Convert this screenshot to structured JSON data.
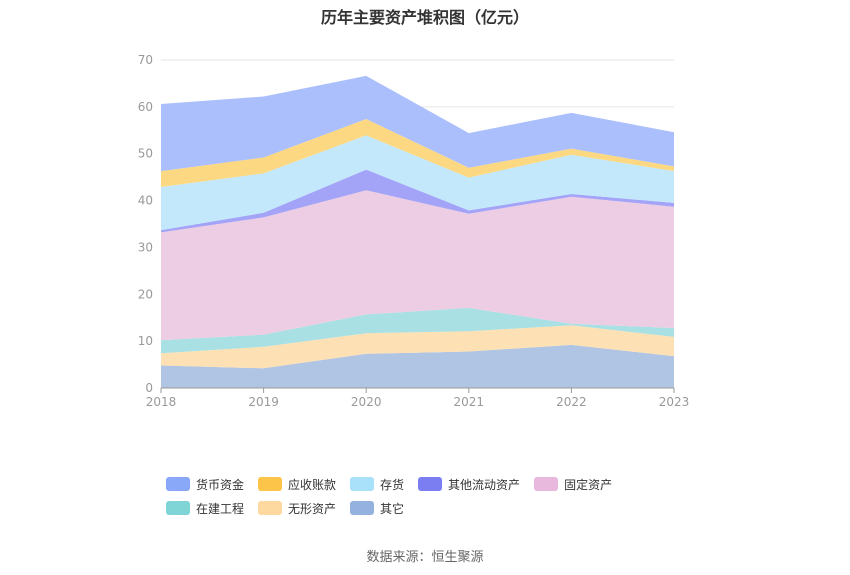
{
  "chart_data": {
    "type": "area",
    "stacked": true,
    "title": "历年主要资产堆积图（亿元）",
    "categories": [
      "2018",
      "2019",
      "2020",
      "2021",
      "2022",
      "2023"
    ],
    "ylim": [
      0,
      70
    ],
    "yticks": [
      0,
      10,
      20,
      30,
      40,
      50,
      60,
      70
    ],
    "grid": true,
    "legend_position": "bottom",
    "series": [
      {
        "name": "其它",
        "color": "#b0c4e4",
        "values": [
          4.8,
          4.2,
          7.3,
          7.8,
          9.2,
          6.8
        ]
      },
      {
        "name": "无形资产",
        "color": "#fde0b3",
        "values": [
          2.6,
          4.6,
          4.4,
          4.3,
          4.2,
          4.1
        ]
      },
      {
        "name": "在建工程",
        "color": "#a8e0e3",
        "values": [
          2.8,
          2.6,
          4.0,
          5.0,
          0.3,
          1.9
        ]
      },
      {
        "name": "固定资产",
        "color": "#edcde4",
        "values": [
          23.0,
          25.0,
          26.5,
          20.1,
          27.1,
          25.9
        ]
      },
      {
        "name": "其他流动资产",
        "color": "#a3a3f7",
        "values": [
          0.5,
          1.0,
          4.4,
          0.7,
          0.6,
          0.8
        ]
      },
      {
        "name": "存货",
        "color": "#c4e8fb",
        "values": [
          9.2,
          8.4,
          7.3,
          7.0,
          8.4,
          6.8
        ]
      },
      {
        "name": "应收账款",
        "color": "#fdd883",
        "values": [
          3.4,
          3.4,
          3.5,
          2.1,
          1.3,
          1.0
        ]
      },
      {
        "name": "货币资金",
        "color": "#aabffb",
        "values": [
          14.3,
          13.0,
          9.2,
          7.4,
          7.6,
          7.3
        ]
      }
    ]
  },
  "legend": [
    {
      "name": "货币资金",
      "color": "#8aa8f8"
    },
    {
      "name": "应收账款",
      "color": "#fcc54a"
    },
    {
      "name": "存货",
      "color": "#a9e0fa"
    },
    {
      "name": "其他流动资产",
      "color": "#7b7ef0"
    },
    {
      "name": "固定资产",
      "color": "#e8b9dc"
    },
    {
      "name": "在建工程",
      "color": "#7fd4d6"
    },
    {
      "name": "无形资产",
      "color": "#fdd9a0"
    },
    {
      "name": "其它",
      "color": "#95b1e0"
    }
  ],
  "source": "数据来源：恒生聚源"
}
